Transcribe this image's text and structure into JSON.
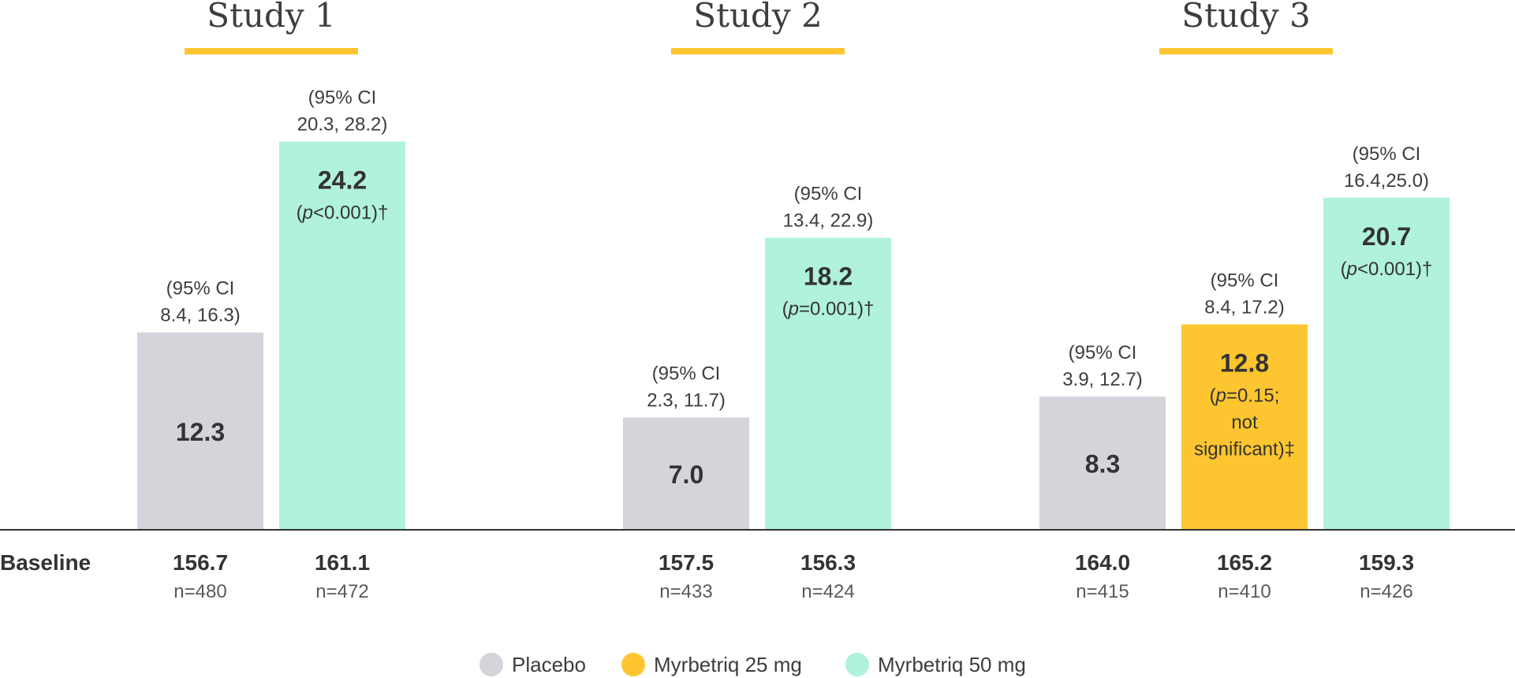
{
  "chart_data": {
    "type": "bar",
    "baseline_label": "Baseline",
    "ylim": [
      0,
      30
    ],
    "grid": false,
    "legend_position": "bottom-center",
    "legend": [
      {
        "name": "Placebo",
        "color": "#d4d5da"
      },
      {
        "name": "Myrbetriq 25 mg",
        "color": "#fdc52f"
      },
      {
        "name": "Myrbetriq 50 mg",
        "color": "#b0f2da"
      }
    ],
    "groups": [
      {
        "title": "Study 1",
        "bars": [
          {
            "series": "Placebo",
            "value": 12.3,
            "value_label": "12.3",
            "ci_lines": [
              "(95% CI",
              "8.4, 16.3)"
            ],
            "p_lines": [],
            "baseline": "156.7",
            "n": "n=480"
          },
          {
            "series": "Myrbetriq 50 mg",
            "value": 24.2,
            "value_label": "24.2",
            "ci_lines": [
              "(95% CI",
              "20.3, 28.2)"
            ],
            "p_lines": [
              "(p<0.001)†"
            ],
            "baseline": "161.1",
            "n": "n=472"
          }
        ]
      },
      {
        "title": "Study 2",
        "bars": [
          {
            "series": "Placebo",
            "value": 7.0,
            "value_label": "7.0",
            "ci_lines": [
              "(95% CI",
              "2.3, 11.7)"
            ],
            "p_lines": [],
            "baseline": "157.5",
            "n": "n=433"
          },
          {
            "series": "Myrbetriq 50 mg",
            "value": 18.2,
            "value_label": "18.2",
            "ci_lines": [
              "(95% CI",
              "13.4, 22.9)"
            ],
            "p_lines": [
              "(p=0.001)†"
            ],
            "baseline": "156.3",
            "n": "n=424"
          }
        ]
      },
      {
        "title": "Study 3",
        "bars": [
          {
            "series": "Placebo",
            "value": 8.3,
            "value_label": "8.3",
            "ci_lines": [
              "(95% CI",
              "3.9, 12.7)"
            ],
            "p_lines": [],
            "baseline": "164.0",
            "n": "n=415"
          },
          {
            "series": "Myrbetriq 25 mg",
            "value": 12.8,
            "value_label": "12.8",
            "ci_lines": [
              "(95% CI",
              "8.4, 17.2)"
            ],
            "p_lines": [
              "(p=0.15;",
              "not",
              "significant)‡"
            ],
            "baseline": "165.2",
            "n": "n=410"
          },
          {
            "series": "Myrbetriq 50 mg",
            "value": 20.7,
            "value_label": "20.7",
            "ci_lines": [
              "(95% CI",
              "16.4,25.0)"
            ],
            "p_lines": [
              "(p<0.001)†"
            ],
            "baseline": "159.3",
            "n": "n=426"
          }
        ]
      }
    ]
  }
}
